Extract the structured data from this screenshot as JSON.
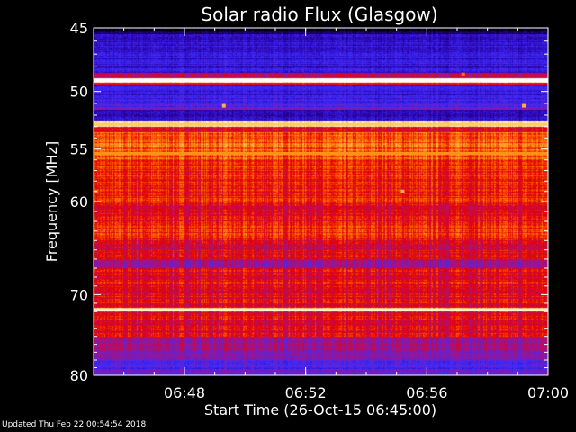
{
  "chart_data": {
    "type": "heatmap",
    "title": "Solar radio Flux (Glasgow)",
    "xlabel": "Start Time (26-Oct-15 06:45:00)",
    "ylabel": "Frequency [MHz]",
    "y_unit": "MHz",
    "y_scale": "log",
    "x_range": [
      "06:45",
      "07:00"
    ],
    "x_ticks": [
      "06:48",
      "06:52",
      "06:56",
      "07:00"
    ],
    "x_tick_minutes": [
      3,
      7,
      11,
      15
    ],
    "x_minor_step_minutes": 1,
    "ylim": [
      45,
      80
    ],
    "y_ticks": [
      45,
      50,
      55,
      60,
      70,
      80
    ],
    "y_minor_ticks": [
      46,
      47,
      48,
      49,
      51,
      52,
      53,
      54,
      56,
      57,
      58,
      59,
      61,
      62,
      63,
      64,
      65,
      66,
      67,
      68,
      69,
      71,
      72,
      73,
      74,
      75,
      76,
      77,
      78,
      79
    ],
    "colormap": [
      "#000000",
      "#2a00a0",
      "#3b2cff",
      "#b0107a",
      "#e60000",
      "#ff7a00",
      "#ffd070",
      "#ffffff"
    ],
    "background_bands": [
      {
        "from": 45.0,
        "to": 45.5,
        "level": 0.05
      },
      {
        "from": 45.5,
        "to": 48.5,
        "level": 0.22
      },
      {
        "from": 48.5,
        "to": 48.9,
        "level": 0.45
      },
      {
        "from": 48.9,
        "to": 49.3,
        "level": 0.95
      },
      {
        "from": 49.3,
        "to": 49.5,
        "level": 0.5
      },
      {
        "from": 49.5,
        "to": 51.0,
        "level": 0.24
      },
      {
        "from": 51.0,
        "to": 51.5,
        "level": 0.32
      },
      {
        "from": 51.5,
        "to": 52.5,
        "level": 0.2
      },
      {
        "from": 52.5,
        "to": 53.0,
        "level": 0.85
      },
      {
        "from": 53.0,
        "to": 53.5,
        "level": 0.55
      },
      {
        "from": 53.5,
        "to": 56.0,
        "level": 0.68
      },
      {
        "from": 56.0,
        "to": 60.0,
        "level": 0.6
      },
      {
        "from": 60.0,
        "to": 62.0,
        "level": 0.56
      },
      {
        "from": 62.0,
        "to": 64.0,
        "level": 0.6
      },
      {
        "from": 64.0,
        "to": 66.0,
        "level": 0.52
      },
      {
        "from": 66.0,
        "to": 67.0,
        "level": 0.42
      },
      {
        "from": 67.0,
        "to": 69.0,
        "level": 0.56
      },
      {
        "from": 69.0,
        "to": 71.5,
        "level": 0.55
      },
      {
        "from": 71.5,
        "to": 72.0,
        "level": 0.9
      },
      {
        "from": 72.0,
        "to": 75.0,
        "level": 0.54
      },
      {
        "from": 75.0,
        "to": 77.0,
        "level": 0.44
      },
      {
        "from": 77.0,
        "to": 79.0,
        "level": 0.34
      },
      {
        "from": 79.0,
        "to": 80.0,
        "level": 0.3
      }
    ],
    "bright_lines": [
      {
        "freq": 49.1,
        "level": 1.0
      },
      {
        "freq": 52.8,
        "level": 0.85
      },
      {
        "freq": 55.4,
        "level": 0.75
      },
      {
        "freq": 71.8,
        "level": 0.95
      }
    ],
    "spots": [
      {
        "time_min": 4.3,
        "freq": 51.2,
        "level": 0.8
      },
      {
        "time_min": 14.2,
        "freq": 51.2,
        "level": 0.8
      },
      {
        "time_min": 10.2,
        "freq": 59.0,
        "level": 0.8
      },
      {
        "time_min": 0.1,
        "freq": 59.0,
        "level": 0.7
      },
      {
        "time_min": 12.2,
        "freq": 48.6,
        "level": 0.7
      }
    ]
  },
  "footer": {
    "updated": "Updated Thu Feb 22 00:54:54 2018"
  }
}
